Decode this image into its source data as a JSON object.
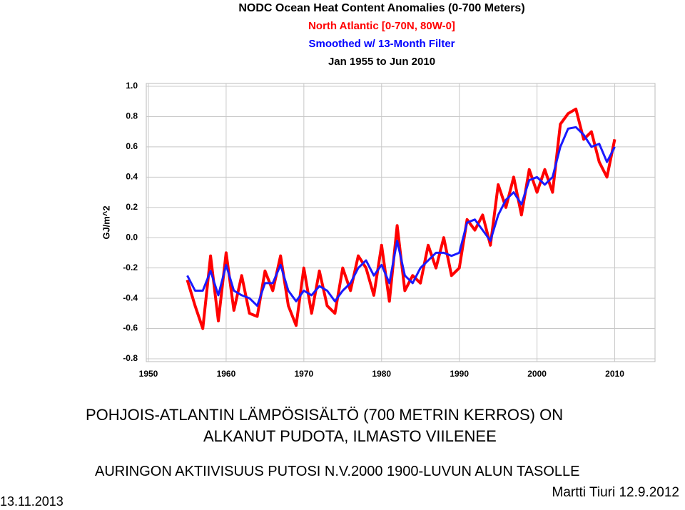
{
  "chart_data": {
    "type": "line",
    "title": "NODC Ocean Heat Content Anomalies (0-700 Meters)",
    "subtitles": [
      {
        "text": "North Atlantic [0-70N, 80W-0]",
        "color": "#ff0000"
      },
      {
        "text": "Smoothed w/ 13-Month Filter",
        "color": "#0000ff"
      },
      {
        "text": "Jan 1955 to Jun 2010",
        "color": "#000000"
      }
    ],
    "y_label": "GJ/m^2",
    "x": [
      1955,
      1956,
      1957,
      1958,
      1959,
      1960,
      1961,
      1962,
      1963,
      1964,
      1965,
      1966,
      1967,
      1968,
      1969,
      1970,
      1971,
      1972,
      1973,
      1974,
      1975,
      1976,
      1977,
      1978,
      1979,
      1980,
      1981,
      1982,
      1983,
      1984,
      1985,
      1986,
      1987,
      1988,
      1989,
      1990,
      1991,
      1992,
      1993,
      1994,
      1995,
      1996,
      1997,
      1998,
      1999,
      2000,
      2001,
      2002,
      2003,
      2004,
      2005,
      2006,
      2007,
      2008,
      2009,
      2010
    ],
    "series": [
      {
        "color": "#ff0000",
        "width": 4,
        "values": [
          -0.28,
          -0.45,
          -0.6,
          -0.12,
          -0.55,
          -0.1,
          -0.48,
          -0.25,
          -0.5,
          -0.52,
          -0.22,
          -0.35,
          -0.12,
          -0.45,
          -0.58,
          -0.2,
          -0.5,
          -0.22,
          -0.45,
          -0.5,
          -0.2,
          -0.35,
          -0.12,
          -0.2,
          -0.38,
          -0.05,
          -0.42,
          0.08,
          -0.35,
          -0.25,
          -0.3,
          -0.05,
          -0.2,
          0.0,
          -0.25,
          -0.2,
          0.12,
          0.05,
          0.15,
          -0.05,
          0.35,
          0.2,
          0.4,
          0.15,
          0.45,
          0.3,
          0.45,
          0.3,
          0.75,
          0.82,
          0.85,
          0.65,
          0.7,
          0.5,
          0.4,
          0.65
        ]
      },
      {
        "color": "#1a1aff",
        "width": 3,
        "values": [
          -0.25,
          -0.35,
          -0.35,
          -0.22,
          -0.38,
          -0.18,
          -0.35,
          -0.38,
          -0.4,
          -0.45,
          -0.3,
          -0.3,
          -0.18,
          -0.35,
          -0.42,
          -0.35,
          -0.38,
          -0.32,
          -0.35,
          -0.42,
          -0.35,
          -0.3,
          -0.2,
          -0.15,
          -0.25,
          -0.18,
          -0.3,
          -0.02,
          -0.25,
          -0.3,
          -0.2,
          -0.15,
          -0.1,
          -0.1,
          -0.12,
          -0.1,
          0.1,
          0.12,
          0.05,
          -0.02,
          0.15,
          0.25,
          0.3,
          0.22,
          0.38,
          0.4,
          0.35,
          0.4,
          0.6,
          0.72,
          0.73,
          0.68,
          0.6,
          0.62,
          0.5,
          0.6
        ]
      }
    ],
    "xlim": [
      1950,
      2015
    ],
    "xticks": [
      1950,
      1960,
      1970,
      1980,
      1990,
      2000,
      2010
    ],
    "ylim": [
      -0.8,
      1.0
    ],
    "yticks": [
      -0.8,
      -0.6,
      -0.4,
      -0.2,
      {
        "value": 0,
        "label": "0.0"
      },
      0.2,
      0.4,
      0.6,
      0.8,
      {
        "value": 1,
        "label": "1.0"
      }
    ],
    "grid": true
  },
  "slide": {
    "heading": [
      "POHJOIS-ATLANTIN LÄMPÖSISÄLTÖ (700 METRIN KERROS) ON",
      "ALKANUT PUDOTA, ILMASTO VIILENEE"
    ],
    "subheading": "AURINGON AKTIIVISUUS PUTOSI N.V.2000 1900-LUVUN ALUN TASOLLE",
    "author": "Martti Tiuri 12.9.2012",
    "date": "13.11.2013"
  }
}
